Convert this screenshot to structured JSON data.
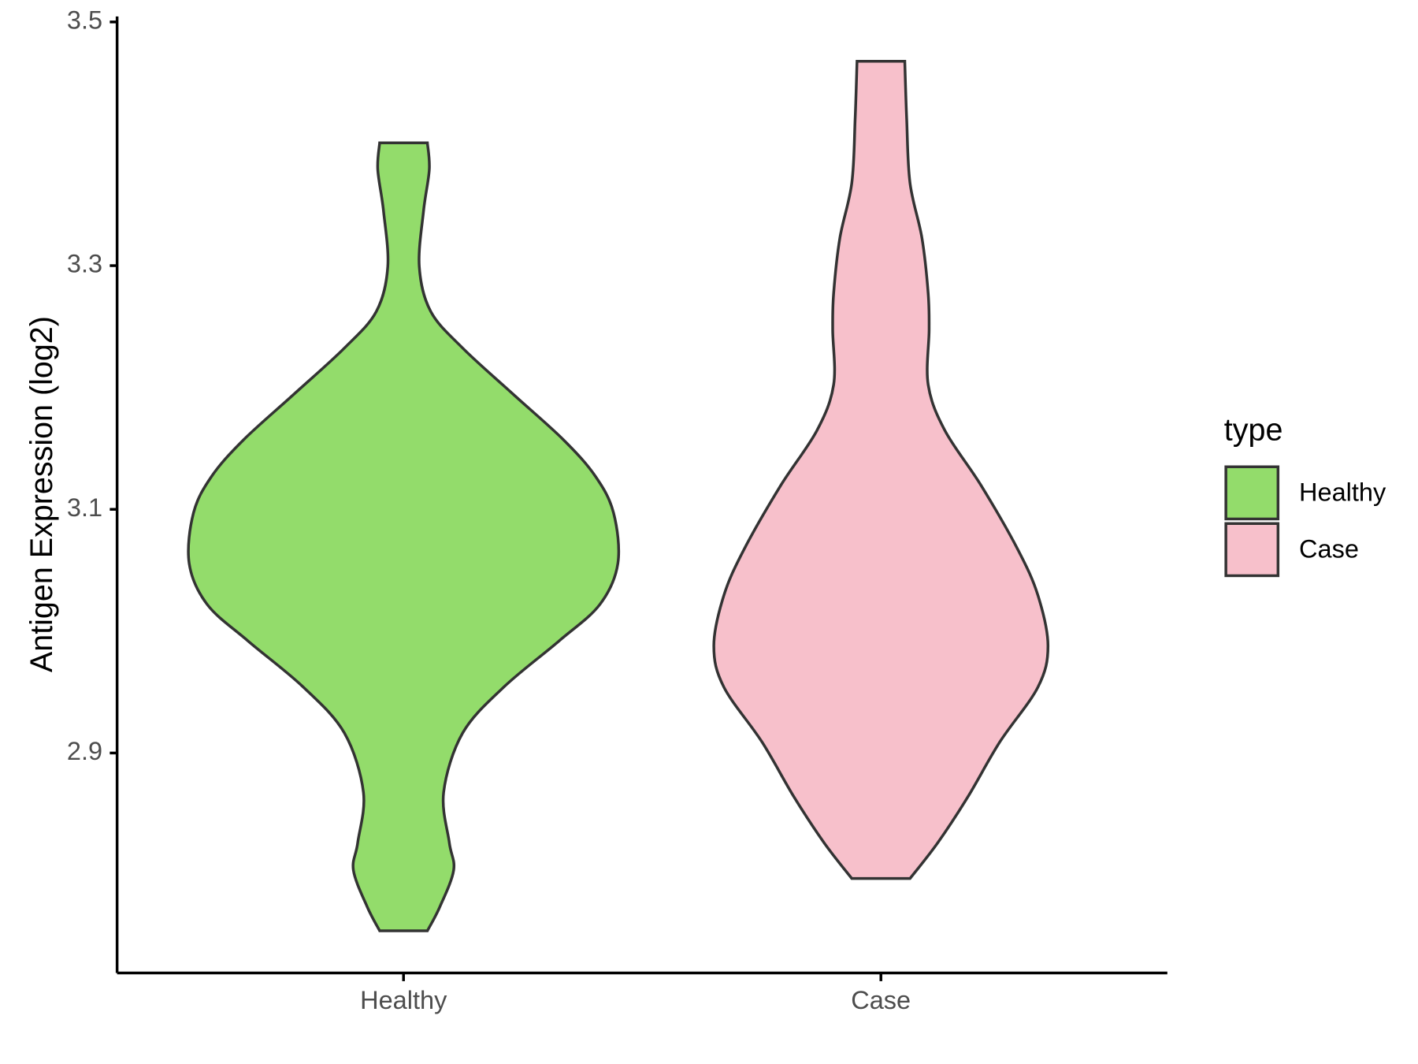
{
  "chart_data": {
    "type": "violin",
    "y_label": "Antigen Expression (log2)",
    "categories": [
      "Healthy",
      "Case"
    ],
    "ylim": [
      2.7195,
      3.5045
    ],
    "yticks": [
      2.9,
      3.1,
      3.3,
      3.5
    ],
    "legend_title": "type",
    "legend_position": "right",
    "series": [
      {
        "name": "Healthy",
        "color": "#93dc6b",
        "y": [
          3.4008,
          3.3789,
          3.3451,
          3.2992,
          3.2624,
          3.2323,
          3.1947,
          3.1571,
          3.1271,
          3.097,
          3.0556,
          3.0218,
          2.9917,
          2.9541,
          2.9165,
          2.8677,
          2.8263,
          2.8038,
          2.7737,
          2.7541
        ],
        "width": [
          0.05,
          0.054,
          0.042,
          0.033,
          0.057,
          0.124,
          0.229,
          0.335,
          0.402,
          0.44,
          0.449,
          0.411,
          0.325,
          0.21,
          0.124,
          0.084,
          0.096,
          0.105,
          0.076,
          0.05
        ]
      },
      {
        "name": "Case",
        "color": "#f7c0cb",
        "y": [
          3.4677,
          3.4203,
          3.3677,
          3.3226,
          3.2774,
          3.2474,
          3.2023,
          3.1647,
          3.1195,
          3.0669,
          3.0293,
          2.988,
          2.9541,
          2.909,
          2.8639,
          2.8263,
          2.797
        ],
        "width": [
          0.05,
          0.054,
          0.061,
          0.086,
          0.099,
          0.101,
          0.099,
          0.134,
          0.21,
          0.287,
          0.329,
          0.35,
          0.329,
          0.249,
          0.182,
          0.119,
          0.061
        ]
      }
    ]
  }
}
